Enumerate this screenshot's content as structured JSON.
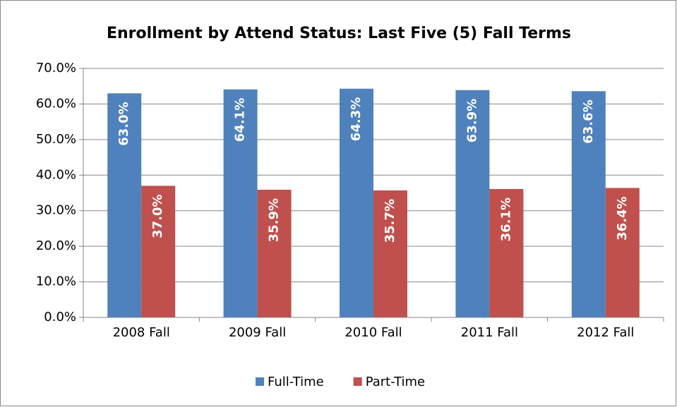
{
  "chart_data": {
    "type": "bar",
    "title": "Enrollment by Attend Status: Last Five (5) Fall Terms",
    "categories": [
      "2008 Fall",
      "2009 Fall",
      "2010 Fall",
      "2011 Fall",
      "2012 Fall"
    ],
    "series": [
      {
        "name": "Full-Time",
        "color": "#4f81bd",
        "values": [
          63.0,
          64.1,
          64.3,
          63.9,
          63.6
        ],
        "value_labels": [
          "63.0%",
          "64.1%",
          "64.3%",
          "63.9%",
          "63.6%"
        ]
      },
      {
        "name": "Part-Time",
        "color": "#c0504d",
        "values": [
          37.0,
          35.9,
          35.7,
          36.1,
          36.4
        ],
        "value_labels": [
          "37.0%",
          "35.9%",
          "35.7%",
          "36.1%",
          "36.4%"
        ]
      }
    ],
    "ylim": [
      0,
      70
    ],
    "yticks": [
      {
        "value": 0,
        "label": "0.0%"
      },
      {
        "value": 10,
        "label": "10.0%"
      },
      {
        "value": 20,
        "label": "20.0%"
      },
      {
        "value": 30,
        "label": "30.0%"
      },
      {
        "value": 40,
        "label": "40.0%"
      },
      {
        "value": 50,
        "label": "50.0%"
      },
      {
        "value": 60,
        "label": "60.0%"
      },
      {
        "value": 70,
        "label": "70.0%"
      }
    ],
    "grid": true,
    "legend": "bottom"
  }
}
